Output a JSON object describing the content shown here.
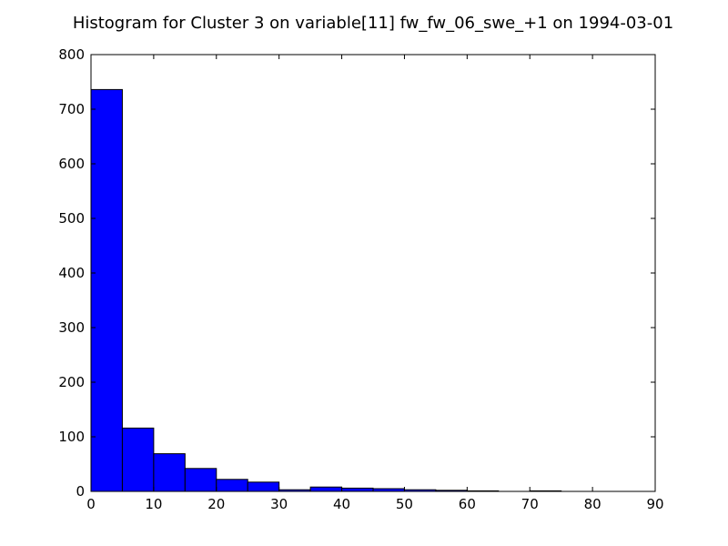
{
  "chart_data": {
    "type": "bar",
    "title": "Histogram for Cluster 3 on variable[11] fw_fw_06_swe_+1 on 1994-03-01",
    "xlabel": "",
    "ylabel": "",
    "xlim": [
      0,
      90
    ],
    "ylim": [
      0,
      800
    ],
    "x_ticks": [
      "0",
      "10",
      "20",
      "30",
      "40",
      "50",
      "60",
      "70",
      "80",
      "90"
    ],
    "y_ticks": [
      "0",
      "100",
      "200",
      "300",
      "400",
      "500",
      "600",
      "700",
      "800"
    ],
    "bin_width": 5,
    "bins": [
      {
        "start": 0,
        "end": 5,
        "count": 736
      },
      {
        "start": 5,
        "end": 10,
        "count": 116
      },
      {
        "start": 10,
        "end": 15,
        "count": 69
      },
      {
        "start": 15,
        "end": 20,
        "count": 42
      },
      {
        "start": 20,
        "end": 25,
        "count": 22
      },
      {
        "start": 25,
        "end": 30,
        "count": 17
      },
      {
        "start": 30,
        "end": 35,
        "count": 3
      },
      {
        "start": 35,
        "end": 40,
        "count": 8
      },
      {
        "start": 40,
        "end": 45,
        "count": 6
      },
      {
        "start": 45,
        "end": 50,
        "count": 5
      },
      {
        "start": 50,
        "end": 55,
        "count": 3
      },
      {
        "start": 55,
        "end": 60,
        "count": 2
      },
      {
        "start": 60,
        "end": 65,
        "count": 1
      },
      {
        "start": 65,
        "end": 70,
        "count": 0
      },
      {
        "start": 70,
        "end": 75,
        "count": 1
      },
      {
        "start": 75,
        "end": 80,
        "count": 0
      },
      {
        "start": 80,
        "end": 85,
        "count": 0
      },
      {
        "start": 85,
        "end": 90,
        "count": 0
      }
    ],
    "bar_color": "#0000ff",
    "edge_color": "#000000",
    "grid": false,
    "legend": "none"
  }
}
